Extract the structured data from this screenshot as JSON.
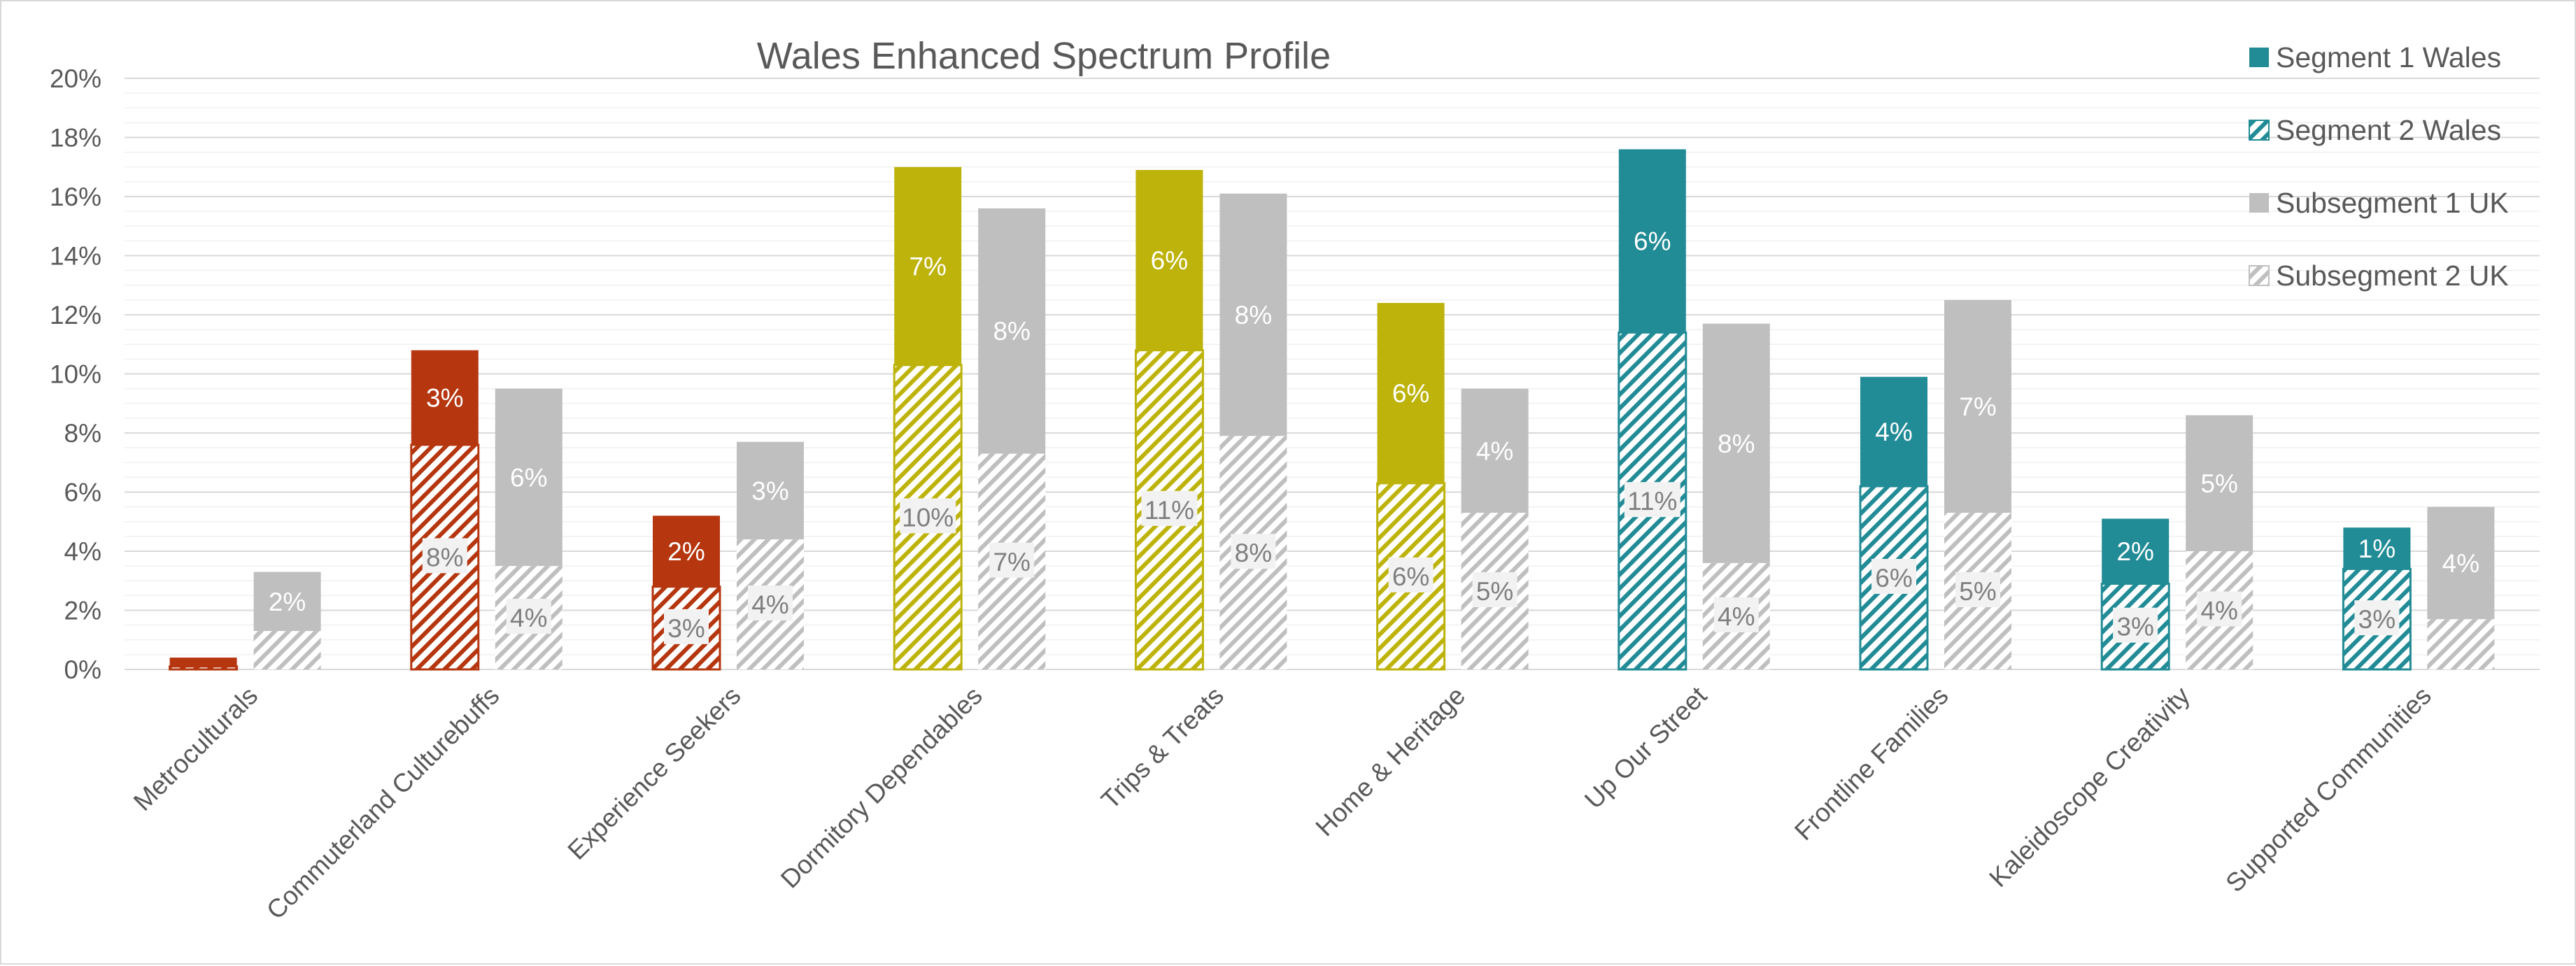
{
  "chart_data": {
    "type": "bar",
    "title": "Wales Enhanced Spectrum Profile",
    "xlabel": "",
    "ylabel": "",
    "ylim": [
      0,
      20
    ],
    "yticks": [
      "0%",
      "2%",
      "4%",
      "6%",
      "8%",
      "10%",
      "12%",
      "14%",
      "16%",
      "18%",
      "20%"
    ],
    "grid": true,
    "legend_position": "top-right",
    "categories": [
      "Metroculturals",
      "Commuterland Culturebuffs",
      "Experience Seekers",
      "Dormitory Dependables",
      "Trips & Treats",
      "Home & Heritage",
      "Up Our Street",
      "Frontline Families",
      "Kaleidoscope Creativity",
      "Supported Communities"
    ],
    "category_colors": [
      "#b5360f",
      "#b5360f",
      "#b5360f",
      "#bdb30a",
      "#bdb30a",
      "#bdb30a",
      "#218b96",
      "#218b96",
      "#218b96",
      "#218b96"
    ],
    "uk_color": "#bfbfbf",
    "series": [
      {
        "name": "Segment 1 Wales",
        "pattern": "solid",
        "group": "Wales",
        "values": [
          0.3,
          3.2,
          2.4,
          6.7,
          6.1,
          6.1,
          6.2,
          3.7,
          2.2,
          1.4
        ],
        "labels": [
          "",
          "3%",
          "2%",
          "7%",
          "6%",
          "6%",
          "6%",
          "4%",
          "2%",
          "1%"
        ]
      },
      {
        "name": "Segment 2 Wales",
        "pattern": "hatched",
        "group": "Wales",
        "values": [
          0.1,
          7.6,
          2.8,
          10.3,
          10.8,
          6.3,
          11.4,
          6.2,
          2.9,
          3.4
        ],
        "labels": [
          "",
          "8%",
          "3%",
          "10%",
          "11%",
          "6%",
          "11%",
          "6%",
          "3%",
          "3%"
        ]
      },
      {
        "name": "Subsegment 1 UK",
        "pattern": "solid",
        "group": "UK",
        "values": [
          2.0,
          6.0,
          3.3,
          8.3,
          8.2,
          4.2,
          8.1,
          7.2,
          4.6,
          3.8
        ],
        "labels": [
          "2%",
          "6%",
          "3%",
          "8%",
          "8%",
          "4%",
          "8%",
          "7%",
          "5%",
          "4%"
        ]
      },
      {
        "name": "Subsegment 2 UK",
        "pattern": "hatched",
        "group": "UK",
        "values": [
          1.3,
          3.5,
          4.4,
          7.3,
          7.9,
          5.3,
          3.6,
          5.3,
          4.0,
          1.7
        ],
        "labels": [
          "",
          "4%",
          "4%",
          "7%",
          "8%",
          "5%",
          "4%",
          "5%",
          "4%",
          ""
        ]
      }
    ]
  },
  "legend": {
    "items": [
      {
        "label": "Segment 1 Wales",
        "color": "#218b96",
        "pattern": "solid"
      },
      {
        "label": "Segment 2 Wales",
        "color": "#218b96",
        "pattern": "hatched"
      },
      {
        "label": "Subsegment 1 UK",
        "color": "#bfbfbf",
        "pattern": "solid"
      },
      {
        "label": "Subsegment 2 UK",
        "color": "#bfbfbf",
        "pattern": "hatched"
      }
    ]
  }
}
